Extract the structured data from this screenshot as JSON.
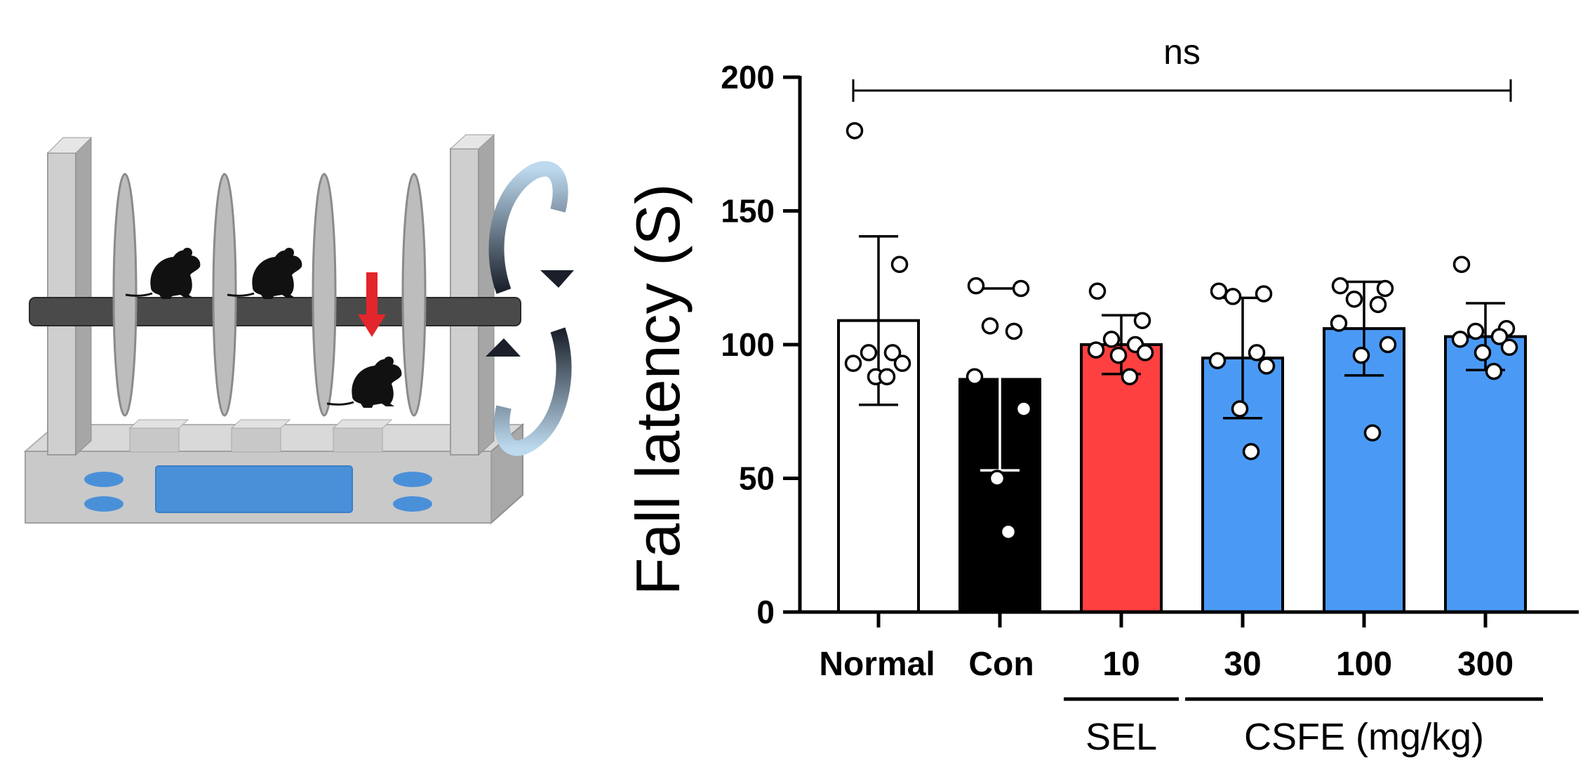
{
  "colors": {
    "normal": "#ffffff",
    "con": "#000000",
    "sel": "#ff4040",
    "csfe": "#4a9af5",
    "frame_gray": "#c8c8c8",
    "panel_blue": "#4a90d9"
  },
  "illustration": {
    "name": "Rotarod apparatus with mice",
    "icons": [
      "rotarod-base-icon",
      "mouse-icon",
      "red-arrow-down-icon",
      "rotation-arrows-icon"
    ]
  },
  "chart_data": {
    "type": "bar",
    "title": "",
    "xlabel": "",
    "ylabel": "Fall latency (S)",
    "ylim": [
      0,
      200
    ],
    "yticks": [
      0,
      50,
      100,
      150,
      200
    ],
    "categories": [
      "Normal",
      "Con",
      "10",
      "30",
      "100",
      "300"
    ],
    "values": [
      109,
      87,
      100,
      95,
      106,
      103
    ],
    "errors": [
      31.5,
      34,
      11,
      22.5,
      17.5,
      12.5
    ],
    "bar_colors": [
      "#ffffff",
      "#000000",
      "#ff4040",
      "#4a9af5",
      "#4a9af5",
      "#4a9af5"
    ],
    "points": [
      [
        180,
        130,
        97,
        97,
        93,
        93,
        88,
        88
      ],
      [
        122,
        121,
        107,
        105,
        88,
        76,
        50,
        30
      ],
      [
        120,
        109,
        102,
        100,
        98,
        97,
        96,
        88
      ],
      [
        120,
        119,
        118,
        97,
        94,
        92,
        76,
        60
      ],
      [
        122,
        121,
        117,
        115,
        108,
        100,
        96,
        67
      ],
      [
        130,
        106,
        105,
        103,
        102,
        99,
        97,
        90
      ]
    ],
    "groups": [
      {
        "label": "SEL",
        "from": "10",
        "to": "10"
      },
      {
        "label": "CSFE (mg/kg)",
        "from": "30",
        "to": "300"
      }
    ],
    "significance": {
      "label": "ns",
      "from": "Normal",
      "to": "300",
      "y": 195
    }
  }
}
